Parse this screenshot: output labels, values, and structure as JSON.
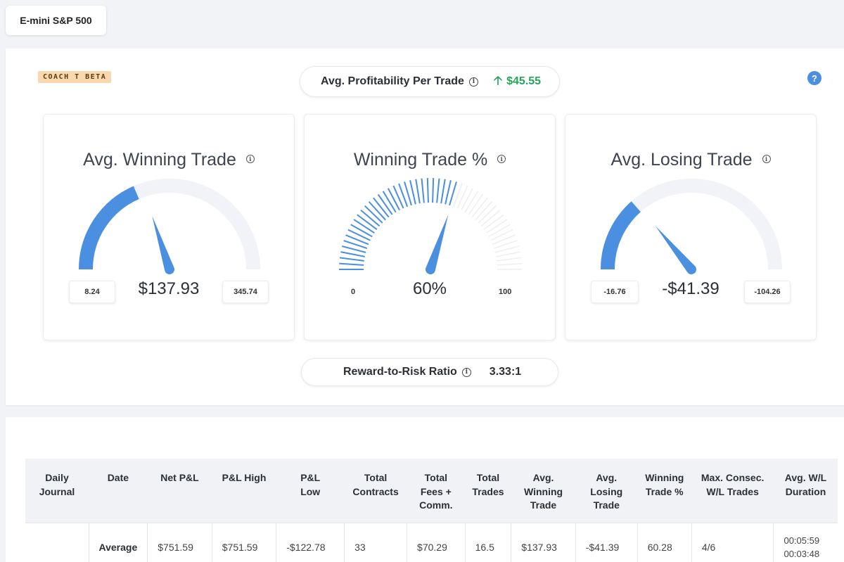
{
  "symbol_tab": {
    "label": "E-mini S&P 500"
  },
  "coach_badge": "COACH T BETA",
  "avg_profitability": {
    "label": "Avg. Profitability Per Trade",
    "value": "$45.55",
    "direction": "up",
    "color": "#27a55a"
  },
  "help_icon": "?",
  "gauges": [
    {
      "title": "Avg. Winning Trade",
      "value": "$137.93",
      "min": "8.24",
      "max": "345.74",
      "fraction": 0.37,
      "needle_fraction": 0.4,
      "style": "arc"
    },
    {
      "title": "Winning Trade %",
      "value": "60%",
      "min": "0",
      "max": "100",
      "fraction": 0.6,
      "needle_fraction": 0.6,
      "style": "ticks"
    },
    {
      "title": "Avg. Losing Trade",
      "value": "-$41.39",
      "min": "-16.76",
      "max": "-104.26",
      "fraction": 0.27,
      "needle_fraction": 0.28,
      "style": "arc"
    }
  ],
  "reward_risk": {
    "label": "Reward-to-Risk Ratio",
    "value": "3.33:1"
  },
  "colors": {
    "accent": "#4a8fe0",
    "track": "#f1f3f8",
    "positive": "#27a55a"
  },
  "table": {
    "headers": [
      [
        "Daily",
        "Journal"
      ],
      [
        "Date"
      ],
      [
        "Net P&L"
      ],
      [
        "P&L High"
      ],
      [
        "P&L",
        "Low"
      ],
      [
        "Total",
        "Contracts"
      ],
      [
        "Total",
        "Fees +",
        "Comm."
      ],
      [
        "Total",
        "Trades"
      ],
      [
        "Avg.",
        "Winning",
        "Trade"
      ],
      [
        "Avg.",
        "Losing",
        "Trade"
      ],
      [
        "Winning",
        "Trade %"
      ],
      [
        "Max. Consec.",
        "W/L Trades"
      ],
      [
        "Avg. W/L",
        "Duration"
      ]
    ],
    "average_row": {
      "label": "Average",
      "net_pnl": "$751.59",
      "pnl_high": "$751.59",
      "pnl_low": "-$122.78",
      "total_contracts": "33",
      "total_fees": "$70.29",
      "total_trades": "16.5",
      "avg_winning": "$137.93",
      "avg_losing": "-$41.39",
      "winning_pct": "60.28",
      "max_consec": "4/6",
      "duration_win": "00:05:59",
      "duration_loss": "00:03:48"
    }
  }
}
